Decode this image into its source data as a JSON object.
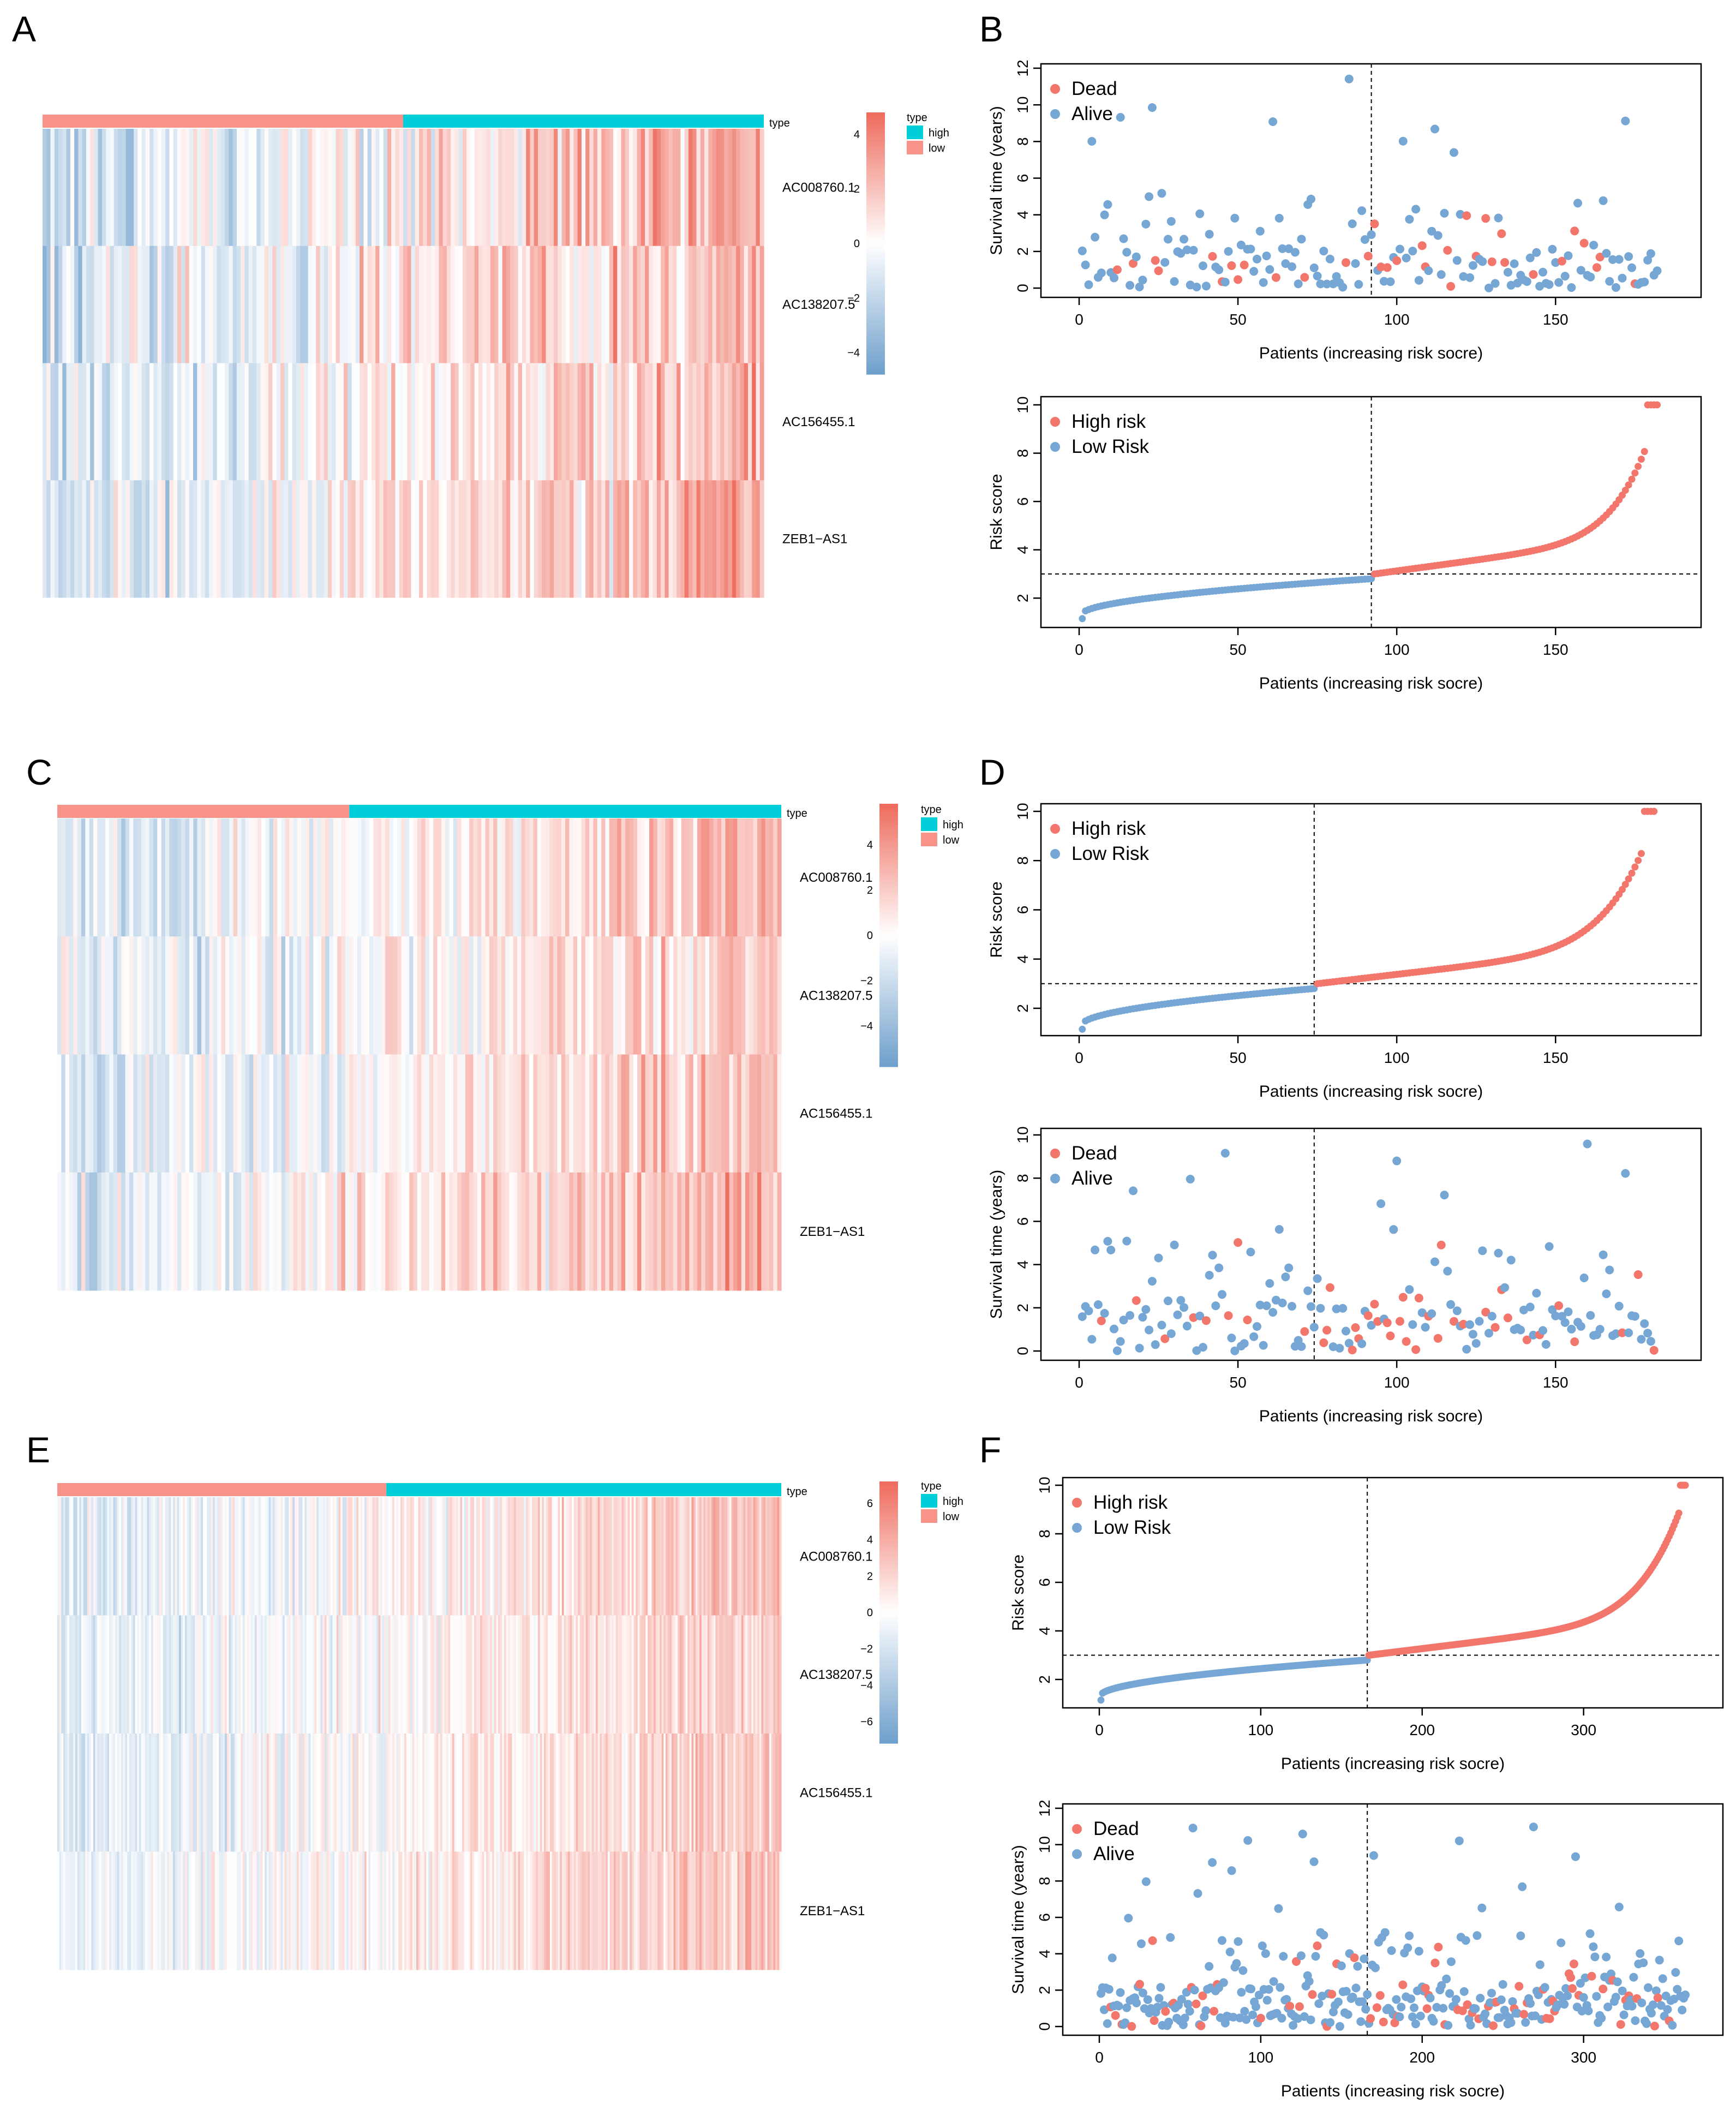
{
  "figure": {
    "panel_letters": [
      "A",
      "B",
      "C",
      "D",
      "E",
      "F"
    ],
    "colors": {
      "high_bar": "#00CED8",
      "low_bar": "#F89389",
      "heat_high": "#EE6B5C",
      "heat_mid": "#FFFFFF",
      "heat_low": "#6E9FCB",
      "dot_red": "#F2766B",
      "dot_blue": "#76A7D4"
    },
    "common": {
      "type_label": "type",
      "legend_high": "high",
      "legend_low": "low",
      "genes": [
        "AC008760.1",
        "AC138207.5",
        "AC156455.1",
        "ZEB1−AS1"
      ],
      "xlabel": "Patients (increasing risk socre)",
      "ylabel_risk": "Risk score",
      "ylabel_surv": "Survival time (years)",
      "legend_high_risk": "High risk",
      "legend_low_risk": "Low Risk",
      "legend_dead": "Dead",
      "legend_alive": "Alive"
    }
  },
  "chart_data": [
    {
      "id": "A",
      "type": "heatmap",
      "title": "",
      "rows": [
        "AC008760.1",
        "AC138207.5",
        "AC156455.1",
        "ZEB1−AS1"
      ],
      "n_samples": 182,
      "n_low": 91,
      "n_high": 91,
      "colorbar": {
        "ticks": [
          4,
          2,
          0,
          -2,
          -4
        ],
        "labels": [
          "4",
          "2",
          "0",
          "−2",
          "−4"
        ],
        "range": [
          -4.8,
          4.8
        ]
      },
      "legend_title": "type",
      "legend": [
        "high",
        "low"
      ]
    },
    {
      "id": "B1",
      "type": "scatter",
      "title": "",
      "xlabel": "Patients (increasing risk socre)",
      "ylabel": "Survival time (years)",
      "xlim": [
        0,
        185
      ],
      "ylim": [
        0,
        12
      ],
      "n": 182,
      "cutoff_x": 92,
      "series_order": "survival",
      "xticks": [
        0,
        50,
        100,
        150
      ],
      "yticks": [
        0,
        2,
        4,
        6,
        8,
        10,
        12
      ],
      "legend": [
        "Dead",
        "Alive"
      ],
      "legend_position": "top-left"
    },
    {
      "id": "B2",
      "type": "scatter",
      "title": "",
      "xlabel": "Patients (increasing risk socre)",
      "ylabel": "Risk score",
      "xlim": [
        0,
        185
      ],
      "ylim": [
        1.1,
        10
      ],
      "n": 182,
      "cutoff_x": 92,
      "cutoff_y": 3.0,
      "xticks": [
        0,
        50,
        100,
        150
      ],
      "yticks": [
        2,
        4,
        6,
        8,
        10
      ],
      "legend": [
        "High risk",
        "Low Risk"
      ],
      "legend_position": "top-left"
    },
    {
      "id": "C",
      "type": "heatmap",
      "title": "",
      "rows": [
        "AC008760.1",
        "AC138207.5",
        "AC156455.1",
        "ZEB1−AS1"
      ],
      "n_samples": 181,
      "n_low": 73,
      "n_high": 108,
      "colorbar": {
        "ticks": [
          4,
          2,
          0,
          -2,
          -4
        ],
        "labels": [
          "4",
          "2",
          "0",
          "−2",
          "−4"
        ],
        "range": [
          -5.8,
          5.8
        ]
      },
      "legend_title": "type",
      "legend": [
        "high",
        "low"
      ]
    },
    {
      "id": "D1",
      "type": "scatter",
      "title": "",
      "xlabel": "Patients (increasing risk socre)",
      "ylabel": "Risk score",
      "xlim": [
        0,
        185
      ],
      "ylim": [
        1.2,
        10
      ],
      "n": 181,
      "cutoff_x": 74,
      "cutoff_y": 3.0,
      "xticks": [
        0,
        50,
        100,
        150
      ],
      "yticks": [
        2,
        4,
        6,
        8,
        10
      ],
      "legend": [
        "High risk",
        "Low Risk"
      ],
      "legend_position": "top-left"
    },
    {
      "id": "D2",
      "type": "scatter",
      "title": "",
      "xlabel": "Patients (increasing risk socre)",
      "ylabel": "Survival time (years)",
      "xlim": [
        0,
        185
      ],
      "ylim": [
        0,
        10
      ],
      "n": 181,
      "cutoff_x": 74,
      "xticks": [
        0,
        50,
        100,
        150
      ],
      "yticks": [
        0,
        2,
        4,
        6,
        8,
        10
      ],
      "legend": [
        "Dead",
        "Alive"
      ],
      "legend_position": "top-left"
    },
    {
      "id": "E",
      "type": "heatmap",
      "title": "",
      "rows": [
        "AC008760.1",
        "AC138207.5",
        "AC156455.1",
        "ZEB1−AS1"
      ],
      "n_samples": 363,
      "n_low": 165,
      "n_high": 198,
      "colorbar": {
        "ticks": [
          6,
          4,
          2,
          0,
          -2,
          -4,
          -6
        ],
        "labels": [
          "6",
          "4",
          "2",
          "0",
          "−2",
          "−4",
          "−6"
        ],
        "range": [
          -7.2,
          7.2
        ]
      },
      "legend_title": "type",
      "legend": [
        "high",
        "low"
      ]
    },
    {
      "id": "F1",
      "type": "scatter",
      "title": "",
      "xlabel": "Patients (increasing risk socre)",
      "ylabel": "Risk score",
      "xlim": [
        0,
        365
      ],
      "ylim": [
        1.1,
        10
      ],
      "n": 363,
      "cutoff_x": 166,
      "cutoff_y": 3.0,
      "xticks": [
        0,
        100,
        200,
        300
      ],
      "yticks": [
        2,
        4,
        6,
        8,
        10
      ],
      "legend": [
        "High risk",
        "Low Risk"
      ],
      "legend_position": "top-left"
    },
    {
      "id": "F2",
      "type": "scatter",
      "title": "",
      "xlabel": "Patients (increasing risk socre)",
      "ylabel": "Survival time (years)",
      "xlim": [
        0,
        365
      ],
      "ylim": [
        0,
        12
      ],
      "n": 363,
      "cutoff_x": 166,
      "xticks": [
        0,
        100,
        200,
        300
      ],
      "yticks": [
        0,
        2,
        4,
        6,
        8,
        10,
        12
      ],
      "legend": [
        "Dead",
        "Alive"
      ],
      "legend_position": "top-left"
    }
  ]
}
